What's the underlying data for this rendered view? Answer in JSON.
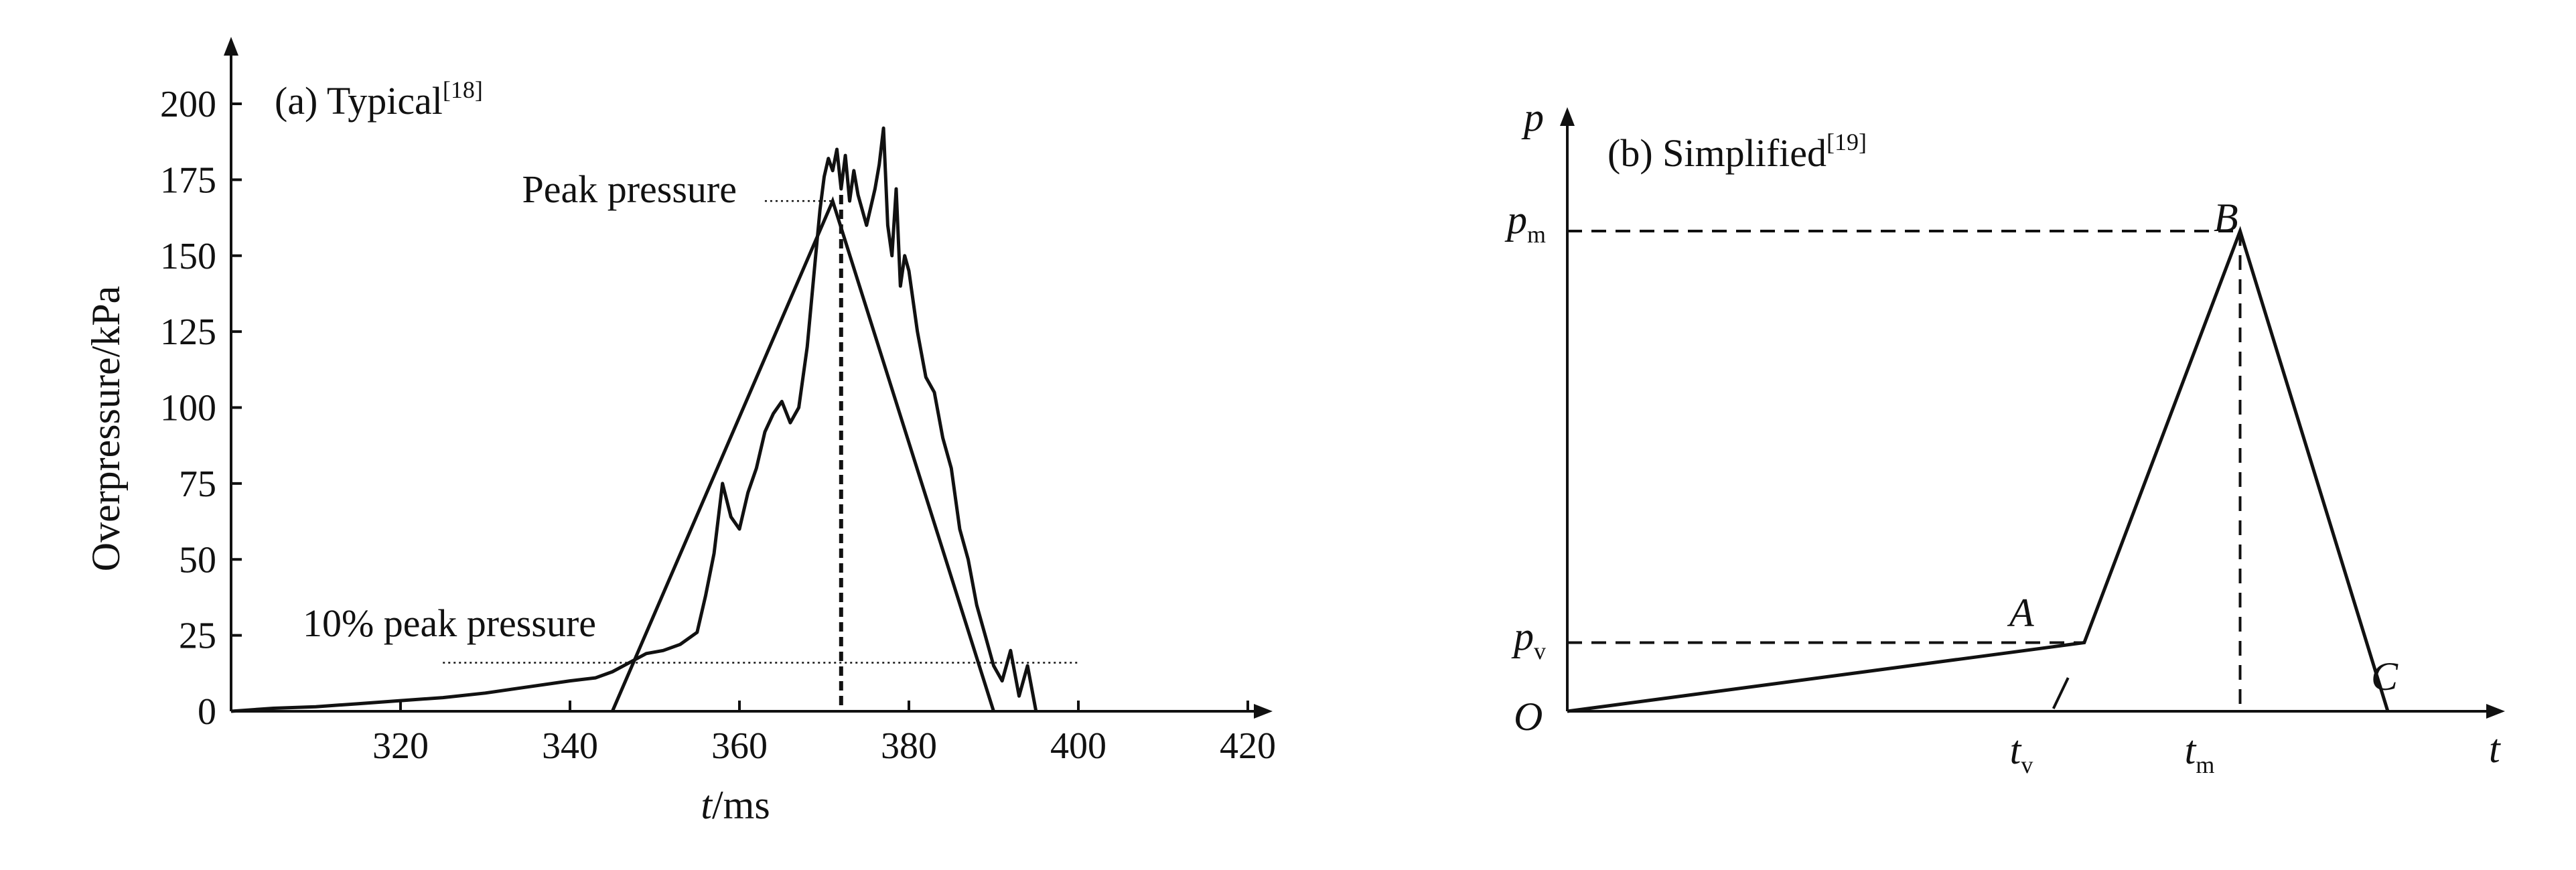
{
  "chart_data": [
    {
      "type": "line",
      "panel": "a",
      "title": "(a) Typical",
      "title_ref": "[18]",
      "xlabel_italic": "t",
      "xlabel_unit": "/ms",
      "ylabel": "Overpressure/kPa",
      "xlim": [
        300,
        420
      ],
      "ylim": [
        0,
        200
      ],
      "x_ticks": [
        320,
        340,
        360,
        380,
        400,
        420
      ],
      "y_ticks": [
        0,
        25,
        50,
        75,
        100,
        125,
        150,
        175,
        200
      ],
      "grid": false,
      "annotations": [
        {
          "text": "Peak pressure",
          "x": 371,
          "y": 168
        },
        {
          "text": "10% peak pressure",
          "x": 345,
          "y": 16
        }
      ],
      "reference_lines": {
        "peak_time_ms": 372,
        "ten_percent_level_kpa": 16,
        "ten_percent_line_x_range": [
          325,
          400
        ],
        "peak_line_x_range": [
          363,
          371
        ]
      },
      "series": [
        {
          "role": "measured",
          "x": [
            300,
            305,
            310,
            315,
            320,
            325,
            330,
            335,
            340,
            343,
            345,
            347,
            349,
            351,
            353,
            355,
            356,
            357,
            358,
            359,
            360,
            361,
            362,
            363,
            364,
            365,
            366,
            367,
            368,
            368.5,
            369,
            369.5,
            370,
            370.5,
            371,
            371.5,
            372,
            372.5,
            373,
            373.5,
            374,
            375,
            376,
            376.5,
            377,
            377.5,
            378,
            378.5,
            379,
            379.5,
            380,
            381,
            382,
            383,
            384,
            385,
            386,
            387,
            388,
            389,
            390,
            391,
            392,
            393,
            394,
            395
          ],
          "y": [
            0,
            1,
            1.5,
            2.5,
            3.5,
            4.5,
            6,
            8,
            10,
            11,
            13,
            16,
            19,
            20,
            22,
            26,
            38,
            52,
            75,
            64,
            60,
            72,
            80,
            92,
            98,
            102,
            95,
            100,
            120,
            135,
            150,
            165,
            176,
            182,
            178,
            185,
            172,
            183,
            168,
            178,
            170,
            160,
            172,
            180,
            192,
            160,
            150,
            172,
            140,
            150,
            145,
            125,
            110,
            105,
            90,
            80,
            60,
            50,
            35,
            25,
            15,
            10,
            20,
            5,
            15,
            0
          ]
        },
        {
          "role": "triangle-approximation",
          "x": [
            345,
            371,
            390
          ],
          "y": [
            0,
            168,
            0
          ]
        }
      ]
    },
    {
      "type": "line",
      "panel": "b",
      "title": "(b) Simplified",
      "title_ref": "[19]",
      "xlabel": "t",
      "ylabel": "p",
      "x_tick_labels": [
        {
          "base": "t",
          "sub": "v"
        },
        {
          "base": "t",
          "sub": "m"
        }
      ],
      "y_tick_labels": [
        {
          "base": "p",
          "sub": "v"
        },
        {
          "base": "p",
          "sub": "m"
        }
      ],
      "points": [
        {
          "label": "O",
          "x": 0,
          "y": 0
        },
        {
          "label": "A",
          "x": 0.63,
          "y": 0.143
        },
        {
          "label": "B",
          "x": 0.82,
          "y": 1.0
        },
        {
          "label": "C",
          "x": 1.0,
          "y": 0
        }
      ],
      "t_v": 0.63,
      "t_m": 0.82,
      "p_v": 0.143,
      "p_m": 1.0,
      "grid": false
    }
  ]
}
